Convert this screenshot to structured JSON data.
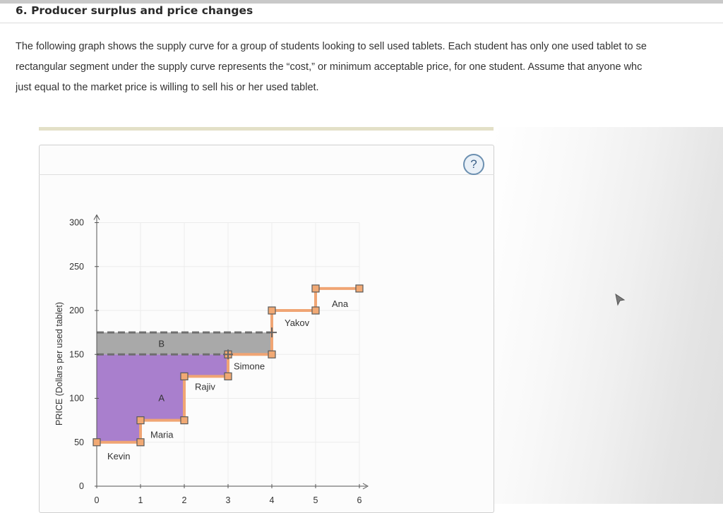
{
  "header": {
    "title": "6. Producer surplus and price changes"
  },
  "intro": {
    "line1": "The following graph shows the supply curve for a group of students looking to sell used tablets. Each student has only one used tablet to se",
    "line2": "rectangular segment under the supply curve represents the “cost,” or minimum acceptable price, for one student. Assume that anyone whc",
    "line3": "just equal to the market price is willing to sell his or her used tablet."
  },
  "help": {
    "label": "?"
  },
  "colors": {
    "supply_line": "#f0a574",
    "handle_fill": "#f1a974",
    "handle_stroke": "#5a5a5a",
    "area_a": "#a97fcd",
    "area_b": "#a9a9a9",
    "grid": "#ececec",
    "dashed": "#6f6f6f"
  },
  "chart_data": {
    "type": "line",
    "xlabel": "",
    "ylabel": "PRICE (Dollars per used tablet)",
    "xlim": [
      0,
      6
    ],
    "ylim": [
      0,
      300
    ],
    "x_ticks": [
      "0",
      "1",
      "2",
      "3",
      "4",
      "5",
      "6"
    ],
    "y_ticks": [
      "0",
      "50",
      "100",
      "150",
      "200",
      "250",
      "300"
    ],
    "supply_steps": [
      {
        "name": "Kevin",
        "x_from": 0,
        "x_to": 1,
        "price": 50
      },
      {
        "name": "Maria",
        "x_from": 1,
        "x_to": 2,
        "price": 75
      },
      {
        "name": "Rajiv",
        "x_from": 2,
        "x_to": 3,
        "price": 125
      },
      {
        "name": "Simone",
        "x_from": 3,
        "x_to": 4,
        "price": 150
      },
      {
        "name": "Yakov",
        "x_from": 4,
        "x_to": 5,
        "price": 200
      },
      {
        "name": "Ana",
        "x_from": 5,
        "x_to": 6,
        "price": 225
      }
    ],
    "areas": [
      {
        "label": "A",
        "price_from": 0,
        "price_to": 150
      },
      {
        "label": "B",
        "price_from": 150,
        "price_to": 175
      }
    ],
    "price_lines": [
      150,
      175
    ],
    "cursor_points": [
      {
        "x": 3,
        "y": 150
      },
      {
        "x": 4,
        "y": 175
      }
    ]
  }
}
